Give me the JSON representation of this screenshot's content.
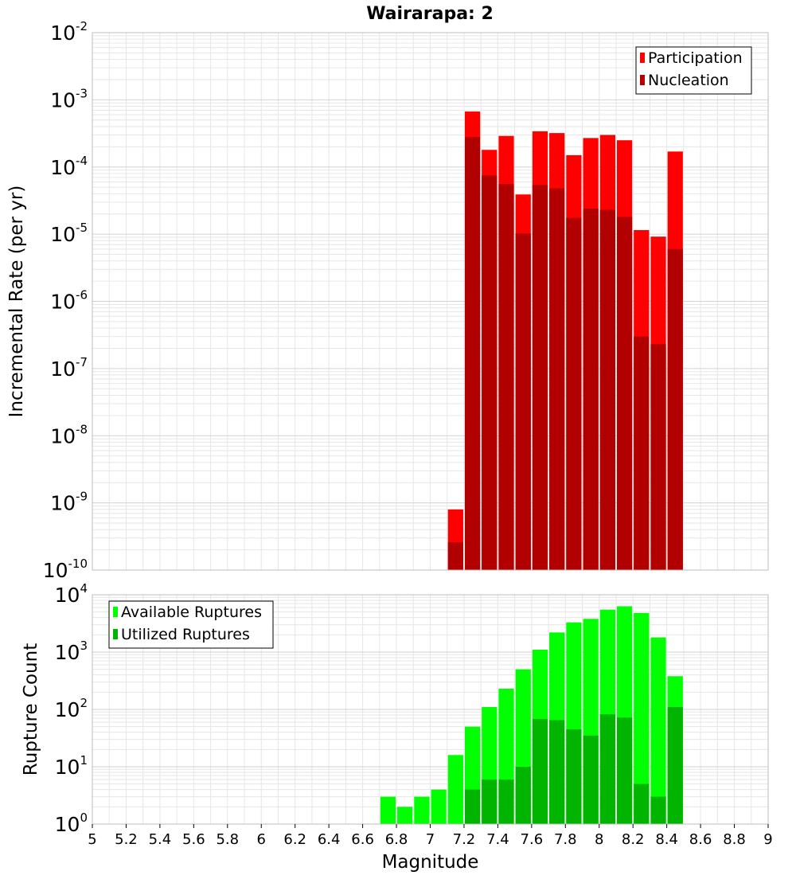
{
  "title": "Wairarapa: 2",
  "colors": {
    "participation": "#ff0000",
    "nucleation": "#b20000",
    "available": "#00ff00",
    "utilized": "#00b400",
    "grid": "#e6e6e6",
    "frame": "#bdbdbd"
  },
  "chart_data": [
    {
      "type": "bar",
      "title": "Wairarapa: 2",
      "ylabel": "Incremental Rate (per yr)",
      "xlabel": "",
      "yscale": "log",
      "ylim_exp": [
        -10,
        -2
      ],
      "xlim": [
        5,
        9
      ],
      "bin_width": 0.1,
      "legend_position": "top-right",
      "grid": true,
      "series": [
        {
          "name": "Participation",
          "x": [
            7.15,
            7.25,
            7.35,
            7.45,
            7.55,
            7.65,
            7.75,
            7.85,
            7.95,
            8.05,
            8.15,
            8.25,
            8.35,
            8.45
          ],
          "values": [
            8e-10,
            0.00067,
            0.00018,
            0.00029,
            3.9e-05,
            0.00034,
            0.00032,
            0.00015,
            0.00027,
            0.0003,
            0.00025,
            1.15e-05,
            9.2e-06,
            0.00017
          ]
        },
        {
          "name": "Nucleation",
          "x": [
            7.15,
            7.25,
            7.35,
            7.45,
            7.55,
            7.65,
            7.75,
            7.85,
            7.95,
            8.05,
            8.15,
            8.25,
            8.35,
            8.45
          ],
          "values": [
            2.6e-10,
            0.00028,
            7.5e-05,
            5.6e-05,
            1.02e-05,
            5.4e-05,
            4.8e-05,
            1.75e-05,
            2.4e-05,
            2.3e-05,
            1.8e-05,
            3e-07,
            2.3e-07,
            6e-06
          ]
        }
      ]
    },
    {
      "type": "bar",
      "title": "",
      "ylabel": "Rupture Count",
      "xlabel": "Magnitude",
      "yscale": "log",
      "ylim_exp": [
        0,
        4
      ],
      "xlim": [
        5,
        9
      ],
      "bin_width": 0.1,
      "legend_position": "top-left",
      "grid": true,
      "xticks": [
        "5",
        "5.2",
        "5.4",
        "5.6",
        "5.8",
        "6",
        "6.2",
        "6.4",
        "6.6",
        "6.8",
        "7",
        "7.2",
        "7.4",
        "7.6",
        "7.8",
        "8",
        "8.2",
        "8.4",
        "8.6",
        "8.8",
        "9"
      ],
      "series": [
        {
          "name": "Available Ruptures",
          "x": [
            6.75,
            6.85,
            6.95,
            7.05,
            7.15,
            7.25,
            7.35,
            7.45,
            7.55,
            7.65,
            7.75,
            7.85,
            7.95,
            8.05,
            8.15,
            8.25,
            8.35,
            8.45,
            8.55
          ],
          "values": [
            3,
            2,
            3,
            4,
            16,
            50,
            110,
            230,
            500,
            1100,
            2200,
            3300,
            3800,
            5500,
            6300,
            4800,
            1800,
            380,
            1
          ]
        },
        {
          "name": "Utilized Ruptures",
          "x": [
            7.15,
            7.25,
            7.35,
            7.45,
            7.55,
            7.65,
            7.75,
            7.85,
            7.95,
            8.05,
            8.15,
            8.25,
            8.35,
            8.45
          ],
          "values": [
            1,
            4,
            6,
            6,
            10,
            68,
            65,
            45,
            35,
            82,
            72,
            5,
            3,
            110
          ]
        }
      ]
    }
  ]
}
